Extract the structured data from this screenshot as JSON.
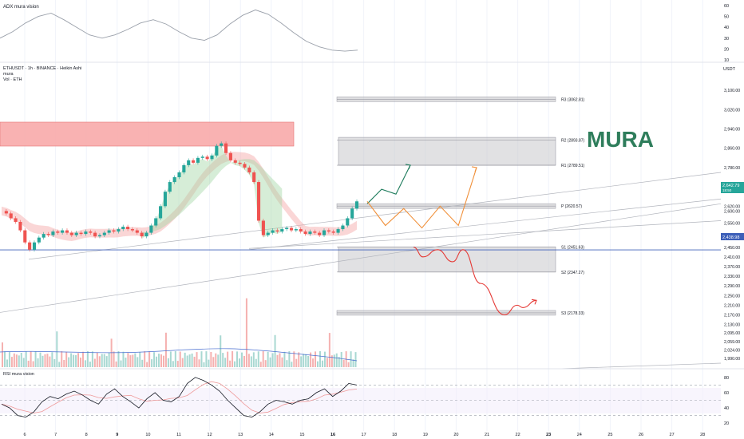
{
  "header": {
    "adx_title": "ADX mura vision",
    "symbol_line": "ETHUSDT · 1h · BINANCE · Heikin Ashi",
    "indicator_name": "mura",
    "volume_label": "Vol · ETH",
    "rsi_title": "RSI mura vision",
    "currency": "USDT",
    "watermark": "MURA"
  },
  "colors": {
    "up": "#26a69a",
    "down": "#ef5350",
    "resistance_zone": "#f8a5a5",
    "pivot_zone": "#c8c8cc",
    "green_arrow": "#1b7a5a",
    "orange_arrow": "#f0903a",
    "red_arrow": "#e53935",
    "watermark": "#2e7d5b",
    "price_line": "#3d5fb8"
  },
  "chart_data": [
    {
      "type": "line",
      "name": "ADX panel",
      "ylim": [
        10,
        60
      ],
      "yticks": [
        "60",
        "50",
        "40",
        "30",
        "20",
        "10"
      ],
      "values": [
        30,
        36,
        44,
        50,
        53,
        47,
        40,
        33,
        30,
        33,
        38,
        44,
        47,
        43,
        36,
        30,
        28,
        33,
        43,
        51,
        56,
        52,
        44,
        35,
        27,
        22,
        19,
        18,
        19
      ]
    },
    {
      "type": "candlestick",
      "name": "ETHUSDT price",
      "ylim": [
        1960,
        3140
      ],
      "yticks": [
        "3,100.00",
        "3,020.00",
        "2,940.00",
        "2,860.00",
        "2,780.00",
        "2,700.00",
        "2,620.00",
        "2,600.00",
        "2,550.00",
        "2,490.00",
        "2,450.00",
        "2,410.00",
        "2,370.00",
        "2,330.00",
        "2,290.00",
        "2,250.00",
        "2,210.00",
        "2,170.00",
        "2,130.00",
        "2,095.00",
        "2,059.00",
        "2,024.00",
        "1,990.00"
      ],
      "xticks": [
        "6",
        "7",
        "8",
        "9",
        "10",
        "11",
        "12",
        "13",
        "14",
        "15",
        "16",
        "17",
        "18",
        "19",
        "20",
        "21",
        "22",
        "23",
        "24",
        "25",
        "26",
        "27",
        "28"
      ],
      "bold_xticks": [
        "9",
        "16",
        "23"
      ],
      "close_path": [
        2600,
        2590,
        2570,
        2555,
        2520,
        2470,
        2440,
        2470,
        2490,
        2505,
        2500,
        2515,
        2510,
        2520,
        2510,
        2500,
        2510,
        2505,
        2515,
        2510,
        2495,
        2500,
        2510,
        2520,
        2515,
        2525,
        2535,
        2525,
        2520,
        2510,
        2495,
        2510,
        2540,
        2570,
        2620,
        2680,
        2720,
        2740,
        2760,
        2790,
        2810,
        2800,
        2820,
        2825,
        2815,
        2830,
        2870,
        2880,
        2840,
        2810,
        2800,
        2795,
        2780,
        2760,
        2720,
        2560,
        2500,
        2510,
        2520,
        2515,
        2525,
        2530,
        2520,
        2525,
        2515,
        2505,
        2515,
        2510,
        2500,
        2520,
        2515,
        2510,
        2525,
        2540,
        2570,
        2610,
        2640
      ],
      "pivots": [
        {
          "label": "R3 (3062.81)",
          "value": 3062.81
        },
        {
          "label": "R2 (2893.87)",
          "value": 2893.87
        },
        {
          "label": "R1 (2789.51)",
          "value": 2789.51
        },
        {
          "label": "P (2620.57)",
          "value": 2620.57
        },
        {
          "label": "S1 (2451.63)",
          "value": 2451.63
        },
        {
          "label": "S2 (2347.27)",
          "value": 2347.27
        },
        {
          "label": "S3 (2178.33)",
          "value": 2178.33
        }
      ],
      "resistance_zone": [
        2810,
        2905
      ],
      "current_price": "2,642.79",
      "current_sub": "18:50",
      "horizontal_line_price": "2,438.98",
      "horizontal_line_value": 2438.98,
      "scenario_green": [
        2630,
        2690,
        2670,
        2790
      ],
      "scenario_orange": [
        2640,
        2540,
        2610,
        2530,
        2620,
        2540,
        2780
      ],
      "scenario_red": [
        2450,
        2410,
        2440,
        2390,
        2440,
        2300,
        2170,
        2210,
        2200,
        2230
      ]
    },
    {
      "type": "line",
      "name": "RSI panel",
      "ylim": [
        15,
        85
      ],
      "yticks": [
        "80",
        "60",
        "40",
        "20"
      ],
      "values": [
        45,
        40,
        30,
        28,
        35,
        48,
        55,
        52,
        58,
        62,
        57,
        50,
        45,
        58,
        65,
        55,
        48,
        40,
        52,
        60,
        50,
        48,
        55,
        72,
        80,
        76,
        70,
        62,
        50,
        40,
        30,
        28,
        35,
        45,
        50,
        48,
        45,
        50,
        52,
        60,
        65,
        55,
        62,
        72,
        70
      ]
    }
  ]
}
